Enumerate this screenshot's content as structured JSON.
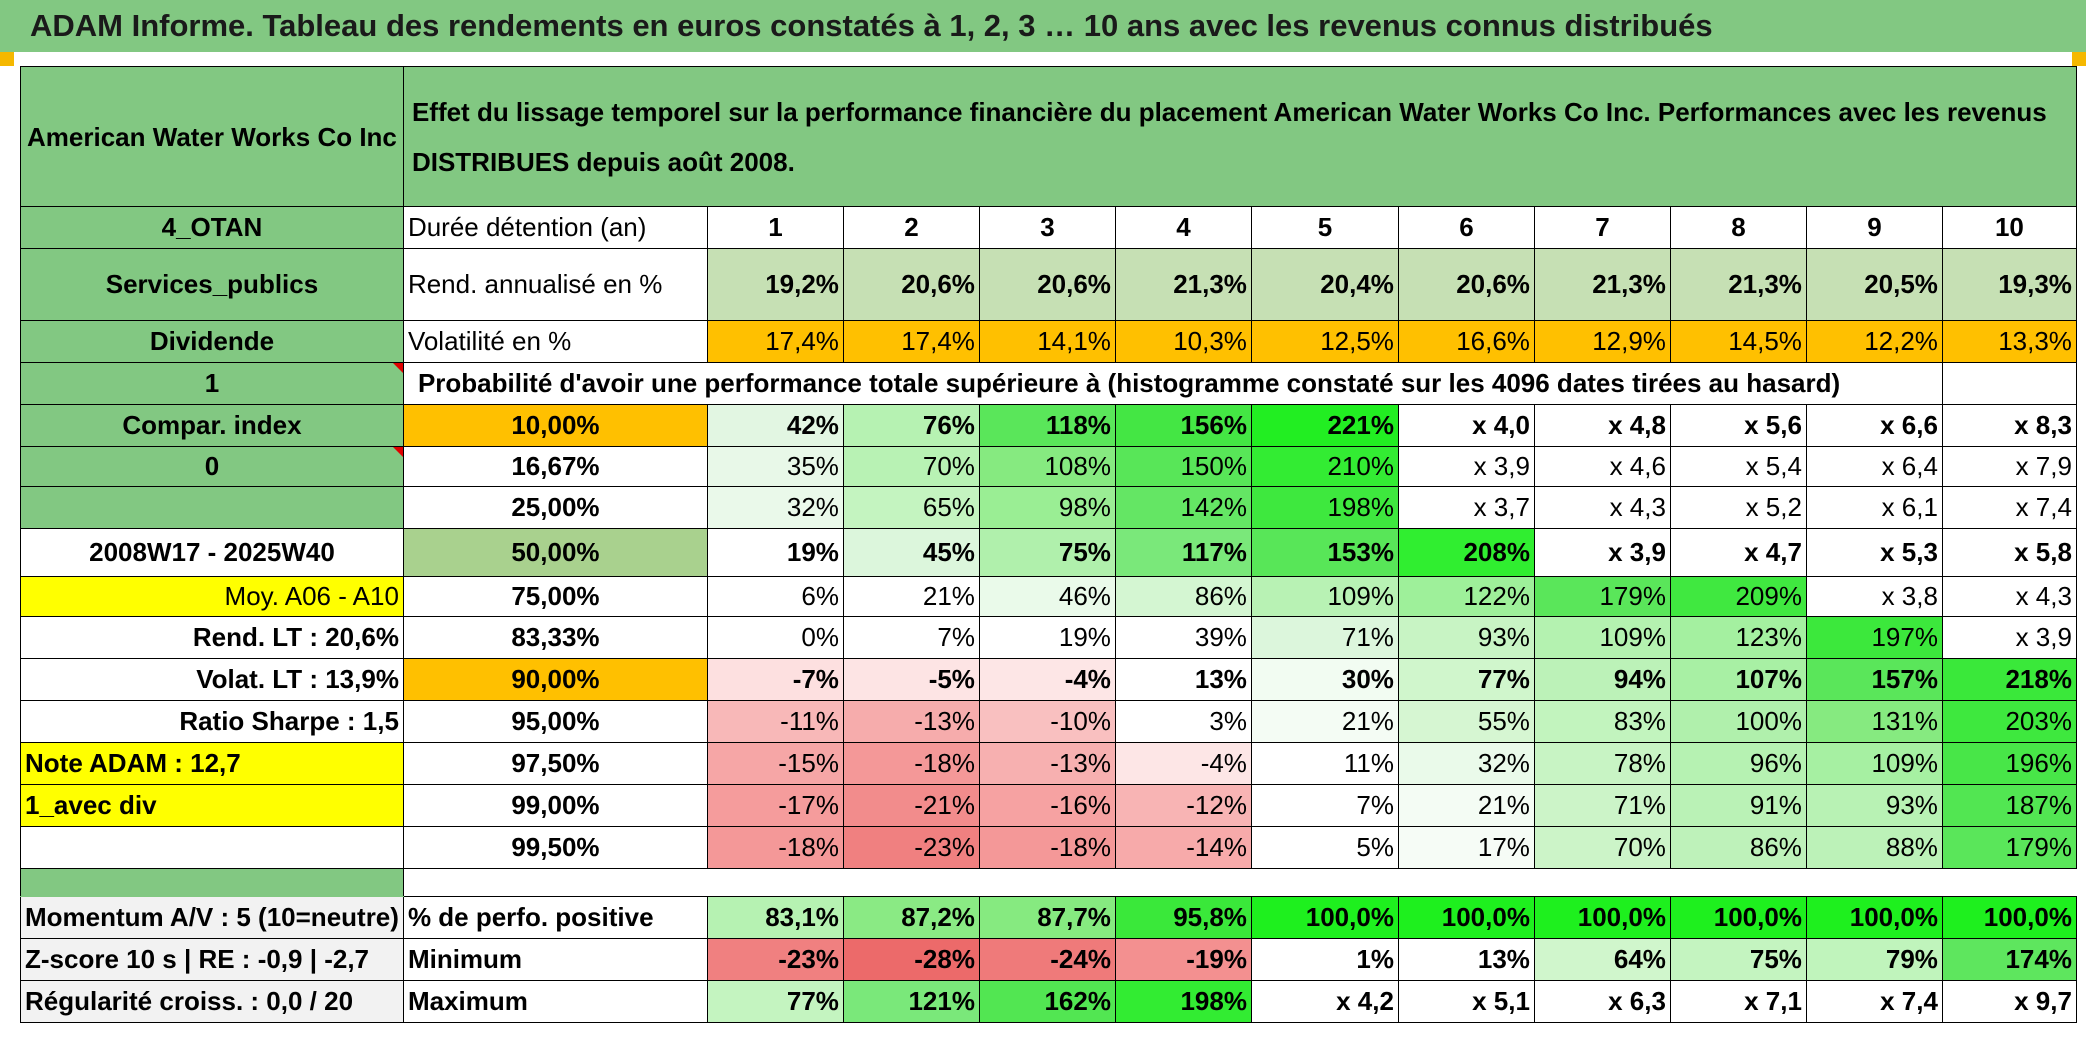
{
  "title": "ADAM Informe. Tableau des rendements en euros constatés à 1, 2, 3 … 10 ans avec les revenus connus distribués",
  "header": {
    "fund": "American Water Works Co Inc",
    "description": "Effet du lissage temporel sur la performance financière du placement American Water Works Co Inc. Performances avec les revenus DISTRIBUES depuis août 2008."
  },
  "left": {
    "code": "4_OTAN",
    "sector": "Services_publics",
    "type": "Dividende",
    "flag1": "1",
    "compar": "Compar. index",
    "flag0": "0",
    "period": "2008W17 - 2025W40",
    "moy": "Moy. A06 - A10",
    "rend_lt": "Rend. LT :   20,6%",
    "volat_lt": "Volat. LT :   13,9%",
    "sharpe": "Ratio Sharpe :    1,5",
    "note": "Note ADAM : 12,7",
    "avec_div": "1_avec div",
    "momentum": "Momentum A/V : 5 (10=neutre)",
    "zscore": "Z-score 10 s | RE : -0,9 | -2,7",
    "regularite": "Régularité croiss. : 0,0 / 20"
  },
  "years": {
    "label": "Durée détention (an)",
    "values": [
      "1",
      "2",
      "3",
      "4",
      "5",
      "6",
      "7",
      "8",
      "9",
      "10"
    ]
  },
  "rend": {
    "label": "Rend. annualisé en %",
    "values": [
      "19,2%",
      "20,6%",
      "20,6%",
      "21,3%",
      "20,4%",
      "20,6%",
      "21,3%",
      "21,3%",
      "20,5%",
      "19,3%"
    ]
  },
  "volat": {
    "label": "Volatilité en %",
    "values": [
      "17,4%",
      "17,4%",
      "14,1%",
      "10,3%",
      "12,5%",
      "16,6%",
      "12,9%",
      "14,5%",
      "12,2%",
      "13,3%"
    ]
  },
  "proba_title": "Probabilité d'avoir une performance totale supérieure à (histogramme constaté sur les 4096 dates tirées au hasard)",
  "proba_rows": [
    {
      "p": "10,00%",
      "v": [
        "42%",
        "76%",
        "118%",
        "156%",
        "221%",
        "x 4,0",
        "x 4,8",
        "x 5,6",
        "x 6,6",
        "x 8,3"
      ],
      "bg": [
        "#e2f6e2",
        "#b6f2b2",
        "#5ae65a",
        "#44e644",
        "#22ee22",
        "#ffffff",
        "#ffffff",
        "#ffffff",
        "#ffffff",
        "#ffffff"
      ]
    },
    {
      "p": "16,67%",
      "v": [
        "35%",
        "70%",
        "108%",
        "150%",
        "210%",
        "x 3,9",
        "x 4,6",
        "x 5,4",
        "x 6,4",
        "x 7,9"
      ],
      "bg": [
        "#e8f8e8",
        "#b8f2b4",
        "#86ea80",
        "#58e658",
        "#33ec33",
        "#ffffff",
        "#ffffff",
        "#ffffff",
        "#ffffff",
        "#ffffff"
      ]
    },
    {
      "p": "25,00%",
      "v": [
        "32%",
        "65%",
        "98%",
        "142%",
        "198%",
        "x 3,7",
        "x 4,3",
        "x 5,2",
        "x 6,1",
        "x 7,4"
      ],
      "bg": [
        "#eaf9ea",
        "#c4f4c0",
        "#9aee94",
        "#64e664",
        "#3ee83e",
        "#ffffff",
        "#ffffff",
        "#ffffff",
        "#ffffff",
        "#ffffff"
      ]
    },
    {
      "p": "50,00%",
      "v": [
        "19%",
        "45%",
        "75%",
        "117%",
        "153%",
        "208%",
        "x 3,9",
        "x 4,7",
        "x 5,3",
        "x 5,8"
      ],
      "bg": [
        "#ffffff",
        "#dcf6dc",
        "#b0f0ac",
        "#7ae87a",
        "#58e658",
        "#30ee30",
        "#ffffff",
        "#ffffff",
        "#ffffff",
        "#ffffff"
      ]
    },
    {
      "p": "75,00%",
      "v": [
        "6%",
        "21%",
        "46%",
        "86%",
        "109%",
        "122%",
        "179%",
        "209%",
        "x 3,8",
        "x 4,3"
      ],
      "bg": [
        "#ffffff",
        "#ffffff",
        "#eafaea",
        "#d4f6d2",
        "#b8f2b4",
        "#9ef09a",
        "#5ae65a",
        "#40e840",
        "#ffffff",
        "#ffffff"
      ]
    },
    {
      "p": "83,33%",
      "v": [
        "0%",
        "7%",
        "19%",
        "39%",
        "71%",
        "93%",
        "109%",
        "123%",
        "197%",
        "x 3,9"
      ],
      "bg": [
        "#ffffff",
        "#ffffff",
        "#ffffff",
        "#ffffff",
        "#dcf6dc",
        "#c8f4c4",
        "#b4f2b0",
        "#a4f0a0",
        "#3ce83c",
        "#ffffff"
      ]
    },
    {
      "p": "90,00%",
      "v": [
        "-7%",
        "-5%",
        "-4%",
        "13%",
        "30%",
        "77%",
        "94%",
        "107%",
        "157%",
        "218%"
      ],
      "bg": [
        "#fde0e0",
        "#fde4e4",
        "#fde6e6",
        "#ffffff",
        "#f2fcf2",
        "#d0f6cc",
        "#bcf2b8",
        "#a8f0a4",
        "#5ae65a",
        "#3ae83a"
      ]
    },
    {
      "p": "95,00%",
      "v": [
        "-11%",
        "-13%",
        "-10%",
        "3%",
        "21%",
        "55%",
        "83%",
        "100%",
        "131%",
        "203%"
      ],
      "bg": [
        "#f8b8b8",
        "#f6acac",
        "#f9c0c0",
        "#ffffff",
        "#f4fcf4",
        "#d6f6d2",
        "#c2f4be",
        "#b0f0ac",
        "#86ea80",
        "#3ee83e"
      ]
    },
    {
      "p": "97,50%",
      "v": [
        "-15%",
        "-18%",
        "-13%",
        "-4%",
        "11%",
        "32%",
        "78%",
        "96%",
        "109%",
        "196%"
      ],
      "bg": [
        "#f6a6a6",
        "#f49898",
        "#f7b0b0",
        "#fde6e6",
        "#ffffff",
        "#eafaea",
        "#c8f4c4",
        "#b6f2b2",
        "#a6f0a2",
        "#48e648"
      ]
    },
    {
      "p": "99,00%",
      "v": [
        "-17%",
        "-21%",
        "-16%",
        "-12%",
        "7%",
        "21%",
        "71%",
        "91%",
        "93%",
        "187%"
      ],
      "bg": [
        "#f59c9c",
        "#f28c8c",
        "#f6a2a2",
        "#f8b4b4",
        "#ffffff",
        "#f4fcf4",
        "#ccf4c8",
        "#baf2b6",
        "#b8f2b4",
        "#52e652"
      ]
    },
    {
      "p": "99,50%",
      "v": [
        "-18%",
        "-23%",
        "-18%",
        "-14%",
        "5%",
        "17%",
        "70%",
        "86%",
        "88%",
        "179%"
      ],
      "bg": [
        "#f49898",
        "#f08080",
        "#f49898",
        "#f7aaaa",
        "#ffffff",
        "#f6fcf6",
        "#ccf4c8",
        "#bef2ba",
        "#bcf2b8",
        "#5ae65a"
      ]
    }
  ],
  "positive": {
    "label": "% de perfo. positive",
    "values": [
      "83,1%",
      "87,2%",
      "87,7%",
      "95,8%",
      "100,0%",
      "100,0%",
      "100,0%",
      "100,0%",
      "100,0%",
      "100,0%"
    ],
    "bg": [
      "#b6f2b2",
      "#8aea84",
      "#86ea80",
      "#3ae83a",
      "#1ef01e",
      "#1ef01e",
      "#1ef01e",
      "#1ef01e",
      "#1ef01e",
      "#1ef01e"
    ]
  },
  "minimum": {
    "label": "Minimum",
    "values": [
      "-23%",
      "-28%",
      "-24%",
      "-19%",
      "1%",
      "13%",
      "64%",
      "75%",
      "79%",
      "174%"
    ],
    "bg": [
      "#f08080",
      "#ec6a6a",
      "#ef7a7a",
      "#f39090",
      "#ffffff",
      "#ffffff",
      "#d0f6cc",
      "#c4f4c0",
      "#c0f4bc",
      "#5ee65e"
    ]
  },
  "maximum": {
    "label": "Maximum",
    "values": [
      "77%",
      "121%",
      "162%",
      "198%",
      "x 4,2",
      "x 5,1",
      "x 6,3",
      "x 7,1",
      "x 7,4",
      "x 9,7"
    ],
    "bg": [
      "#c4f4c0",
      "#7ae87a",
      "#52e652",
      "#32ec32",
      "#ffffff",
      "#ffffff",
      "#ffffff",
      "#ffffff",
      "#ffffff",
      "#ffffff"
    ]
  },
  "colors": {
    "header_green": "#82c882",
    "orange": "#ffc000",
    "yellow": "#ffff00",
    "bright_green": "#00e000",
    "rend_green": "#c6e0b4",
    "red_text": "#e00000"
  }
}
